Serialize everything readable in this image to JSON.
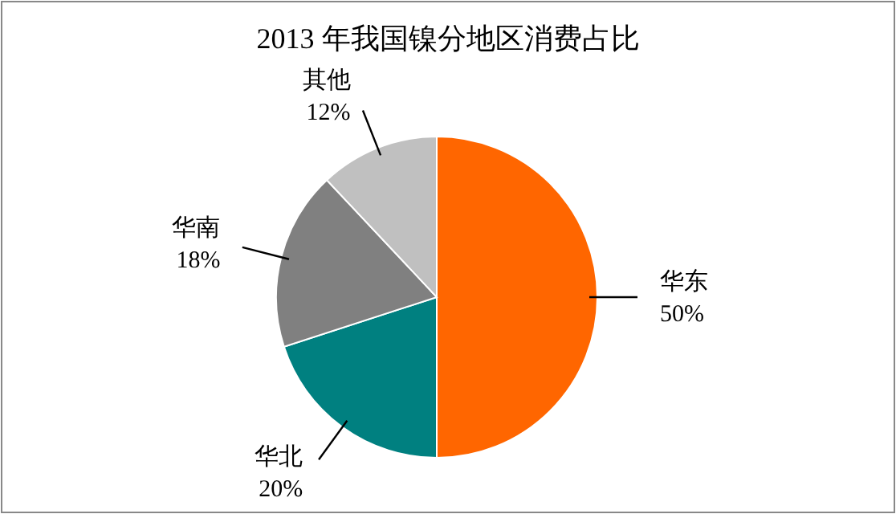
{
  "chart_data": {
    "type": "pie",
    "title": "2013 年我国镍分地区消费占比",
    "categories": [
      "华东",
      "华北",
      "华南",
      "其他"
    ],
    "values": [
      50,
      20,
      18,
      12
    ],
    "value_labels": [
      "50%",
      "20%",
      "18%",
      "12%"
    ],
    "colors": [
      "#ff6600",
      "#008080",
      "#808080",
      "#c0c0c0"
    ]
  }
}
